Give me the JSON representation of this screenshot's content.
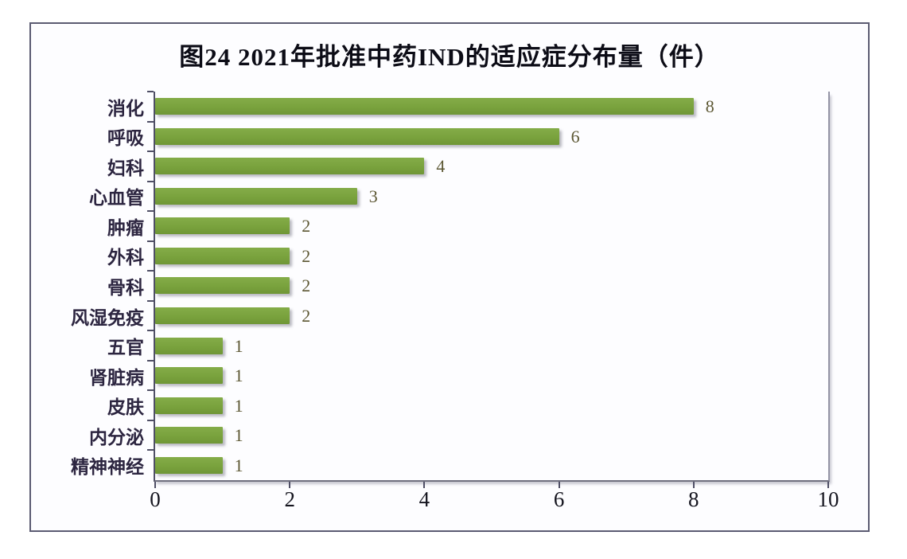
{
  "figure": {
    "title": "图24 2021年批准中药IND的适应症分布量（件）"
  },
  "chart_data": {
    "type": "bar",
    "orientation": "horizontal",
    "title": "图24 2021年批准中药IND的适应症分布量（件）",
    "categories": [
      "消化",
      "呼吸",
      "妇科",
      "心血管",
      "肿瘤",
      "外科",
      "骨科",
      "风湿免疫",
      "五官",
      "肾脏病",
      "皮肤",
      "内分泌",
      "精神神经"
    ],
    "values": [
      8,
      6,
      4,
      3,
      2,
      2,
      2,
      2,
      1,
      1,
      1,
      1,
      1
    ],
    "xlabel": "",
    "ylabel": "",
    "xlim": [
      0,
      10
    ],
    "x_ticks": [
      0,
      2,
      4,
      6,
      8,
      10
    ],
    "grid": false,
    "legend": "none",
    "bar_color": "#79a23d",
    "value_label_color": "#5d5834",
    "axis_color": "#4f4f66",
    "frame_border_color": "#5b5b72",
    "category_label_color": "#2c2540"
  }
}
